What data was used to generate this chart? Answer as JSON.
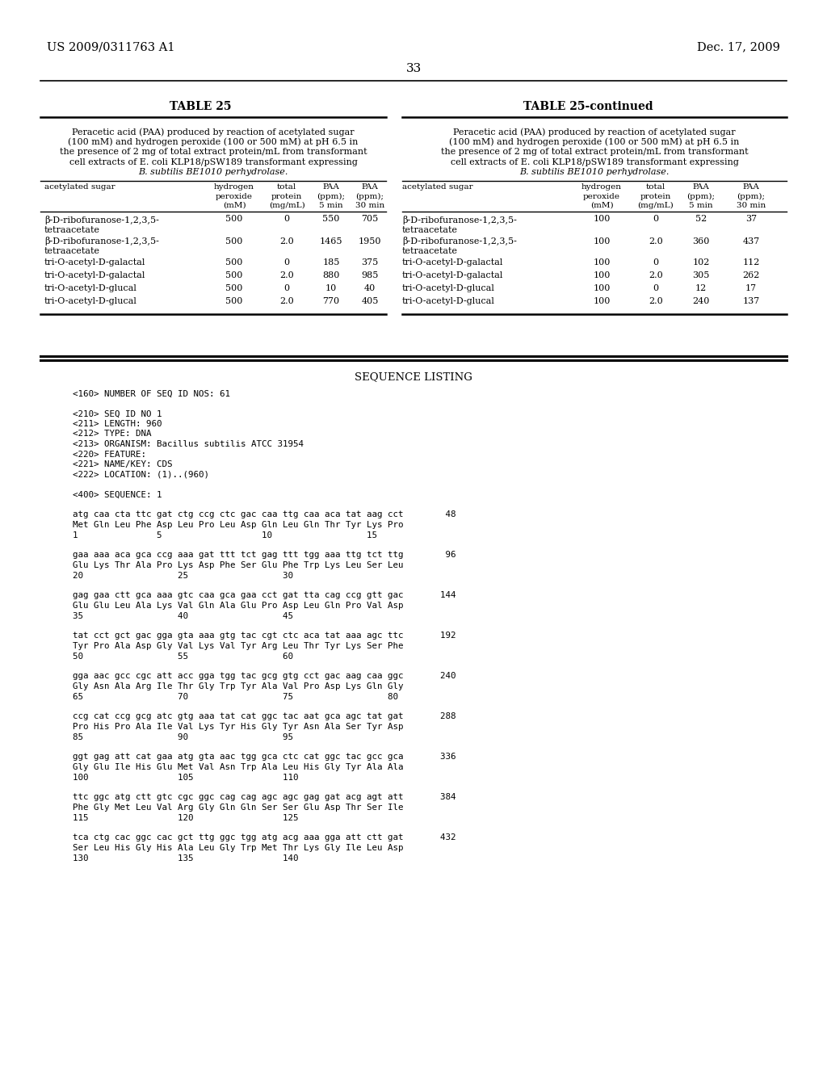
{
  "header_left": "US 2009/0311763 A1",
  "header_right": "Dec. 17, 2009",
  "page_number": "33",
  "table25_title": "TABLE 25",
  "table25cont_title": "TABLE 25-continued",
  "caption_lines": [
    "Peracetic acid (PAA) produced by reaction of acetylated sugar",
    "(100 mM) and hydrogen peroxide (100 or 500 mM) at pH 6.5 in",
    "the presence of 2 mg of total extract protein/mL from transformant",
    "cell extracts of E. coli KLP18/pSW189 transformant expressing",
    "B. subtilis BE1010 perhydrolase."
  ],
  "col_headers": [
    "acetylated sugar",
    "hydrogen\nperoxide\n(mM)",
    "total\nprotein\n(mg/mL)",
    "PAA\n(ppm);\n5 min",
    "PAA\n(ppm);\n30 min"
  ],
  "table25_rows": [
    [
      "β-D-ribofuranose-1,2,3,5-",
      "tetraacetate",
      "500",
      "0",
      "550",
      "705"
    ],
    [
      "β-D-ribofuranose-1,2,3,5-",
      "tetraacetate",
      "500",
      "2.0",
      "1465",
      "1950"
    ],
    [
      "tri-O-acetyl-D-galactal",
      "",
      "500",
      "0",
      "185",
      "375"
    ],
    [
      "tri-O-acetyl-D-galactal",
      "",
      "500",
      "2.0",
      "880",
      "985"
    ],
    [
      "tri-O-acetyl-D-glucal",
      "",
      "500",
      "0",
      "10",
      "40"
    ],
    [
      "tri-O-acetyl-D-glucal",
      "",
      "500",
      "2.0",
      "770",
      "405"
    ]
  ],
  "table25cont_rows": [
    [
      "β-D-ribofuranose-1,2,3,5-",
      "tetraacetate",
      "100",
      "0",
      "52",
      "37"
    ],
    [
      "β-D-ribofuranose-1,2,3,5-",
      "tetraacetate",
      "100",
      "2.0",
      "360",
      "437"
    ],
    [
      "tri-O-acetyl-D-galactal",
      "",
      "100",
      "0",
      "102",
      "112"
    ],
    [
      "tri-O-acetyl-D-galactal",
      "",
      "100",
      "2.0",
      "305",
      "262"
    ],
    [
      "tri-O-acetyl-D-glucal",
      "",
      "100",
      "0",
      "12",
      "17"
    ],
    [
      "tri-O-acetyl-D-glucal",
      "",
      "100",
      "2.0",
      "240",
      "137"
    ]
  ],
  "seq_listing_header": "SEQUENCE LISTING",
  "seq_lines": [
    "<160> NUMBER OF SEQ ID NOS: 61",
    "",
    "<210> SEQ ID NO 1",
    "<211> LENGTH: 960",
    "<212> TYPE: DNA",
    "<213> ORGANISM: Bacillus subtilis ATCC 31954",
    "<220> FEATURE:",
    "<221> NAME/KEY: CDS",
    "<222> LOCATION: (1)..(960)",
    "",
    "<400> SEQUENCE: 1",
    "",
    "atg caa cta ttc gat ctg ccg ctc gac caa ttg caa aca tat aag cct        48",
    "Met Gln Leu Phe Asp Leu Pro Leu Asp Gln Leu Gln Thr Tyr Lys Pro",
    "1               5                   10                  15",
    "",
    "gaa aaa aca gca ccg aaa gat ttt tct gag ttt tgg aaa ttg tct ttg        96",
    "Glu Lys Thr Ala Pro Lys Asp Phe Ser Glu Phe Trp Lys Leu Ser Leu",
    "20                  25                  30",
    "",
    "gag gaa ctt gca aaa gtc caa gca gaa cct gat tta cag ccg gtt gac       144",
    "Glu Glu Leu Ala Lys Val Gln Ala Glu Pro Asp Leu Gln Pro Val Asp",
    "35                  40                  45",
    "",
    "tat cct gct gac gga gta aaa gtg tac cgt ctc aca tat aaa agc ttc       192",
    "Tyr Pro Ala Asp Gly Val Lys Val Tyr Arg Leu Thr Tyr Lys Ser Phe",
    "50                  55                  60",
    "",
    "gga aac gcc cgc att acc gga tgg tac gcg gtg cct gac aag caa ggc       240",
    "Gly Asn Ala Arg Ile Thr Gly Trp Tyr Ala Val Pro Asp Lys Gln Gly",
    "65                  70                  75                  80",
    "",
    "ccg cat ccg gcg atc gtg aaa tat cat ggc tac aat gca agc tat gat       288",
    "Pro His Pro Ala Ile Val Lys Tyr His Gly Tyr Asn Ala Ser Tyr Asp",
    "85                  90                  95",
    "",
    "ggt gag att cat gaa atg gta aac tgg gca ctc cat ggc tac gcc gca       336",
    "Gly Glu Ile His Glu Met Val Asn Trp Ala Leu His Gly Tyr Ala Ala",
    "100                 105                 110",
    "",
    "ttc ggc atg ctt gtc cgc ggc cag cag agc agc gag gat acg agt att       384",
    "Phe Gly Met Leu Val Arg Gly Gln Gln Ser Ser Glu Asp Thr Ser Ile",
    "115                 120                 125",
    "",
    "tca ctg cac ggc cac gct ttg ggc tgg atg acg aaa gga att ctt gat       432",
    "Ser Leu His Gly His Ala Leu Gly Trp Met Thr Lys Gly Ile Leu Asp",
    "130                 135                 140"
  ]
}
